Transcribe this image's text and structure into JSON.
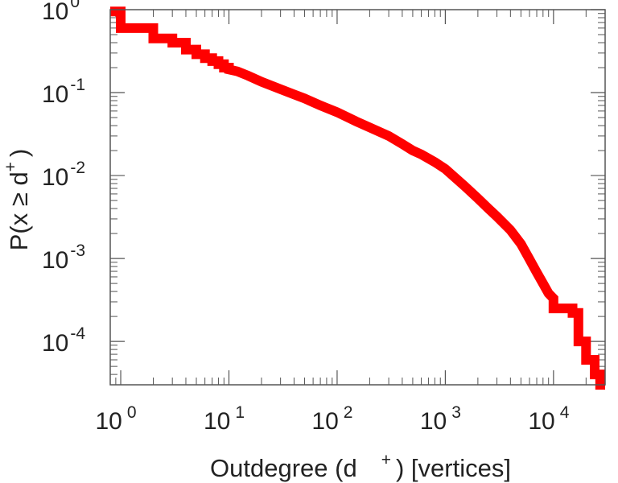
{
  "chart_data": {
    "type": "line",
    "style": "step",
    "xscale": "log",
    "yscale": "log",
    "xlim": [
      0.8,
      30000
    ],
    "ylim": [
      3e-05,
      1
    ],
    "grid": false,
    "legend": "none",
    "xlabel": {
      "prefix": "Outdegree (d",
      "sup": "+",
      "suffix": ") [vertices]"
    },
    "ylabel": {
      "prefix": "P(x ≥ d",
      "sup": "+",
      "suffix": ")"
    },
    "xticks": [
      {
        "value": 1,
        "base": "10",
        "exp": "0"
      },
      {
        "value": 10,
        "base": "10",
        "exp": "1"
      },
      {
        "value": 100,
        "base": "10",
        "exp": "2"
      },
      {
        "value": 1000,
        "base": "10",
        "exp": "3"
      },
      {
        "value": 10000,
        "base": "10",
        "exp": "4"
      }
    ],
    "yticks": [
      {
        "value": 1,
        "base": "10",
        "exp": "0"
      },
      {
        "value": 0.1,
        "base": "10",
        "exp": "-1"
      },
      {
        "value": 0.01,
        "base": "10",
        "exp": "-2"
      },
      {
        "value": 0.001,
        "base": "10",
        "exp": "-3"
      },
      {
        "value": 0.0001,
        "base": "10",
        "exp": "-4"
      }
    ],
    "series": [
      {
        "color": "#ff0000",
        "points": [
          [
            0.8,
            0.95
          ],
          [
            1,
            0.95
          ],
          [
            1,
            0.6
          ],
          [
            2,
            0.6
          ],
          [
            2,
            0.45
          ],
          [
            3,
            0.45
          ],
          [
            3,
            0.4
          ],
          [
            4,
            0.4
          ],
          [
            4,
            0.33
          ],
          [
            5,
            0.33
          ],
          [
            5,
            0.29
          ],
          [
            6,
            0.29
          ],
          [
            6,
            0.26
          ],
          [
            7,
            0.26
          ],
          [
            7,
            0.24
          ],
          [
            8,
            0.24
          ],
          [
            8,
            0.22
          ],
          [
            9,
            0.22
          ],
          [
            9,
            0.2
          ],
          [
            10,
            0.2
          ],
          [
            10,
            0.19
          ],
          [
            12,
            0.18
          ],
          [
            15,
            0.16
          ],
          [
            20,
            0.135
          ],
          [
            30,
            0.11
          ],
          [
            40,
            0.095
          ],
          [
            50,
            0.085
          ],
          [
            70,
            0.07
          ],
          [
            100,
            0.058
          ],
          [
            150,
            0.045
          ],
          [
            200,
            0.038
          ],
          [
            300,
            0.03
          ],
          [
            400,
            0.024
          ],
          [
            500,
            0.02
          ],
          [
            600,
            0.018
          ],
          [
            800,
            0.0145
          ],
          [
            1000,
            0.012
          ],
          [
            1500,
            0.0075
          ],
          [
            2000,
            0.0053
          ],
          [
            2500,
            0.004
          ],
          [
            3000,
            0.0032
          ],
          [
            4000,
            0.0022
          ],
          [
            5000,
            0.0015
          ],
          [
            6000,
            0.00098
          ],
          [
            7000,
            0.00068
          ],
          [
            8000,
            0.0005
          ],
          [
            9000,
            0.00038
          ],
          [
            10000,
            0.00033
          ],
          [
            10000,
            0.00025
          ],
          [
            15000,
            0.00025
          ],
          [
            15000,
            0.00022
          ],
          [
            17000,
            0.00022
          ],
          [
            17000,
            0.0001
          ],
          [
            20000,
            0.0001
          ],
          [
            20000,
            6e-05
          ],
          [
            24000,
            6e-05
          ],
          [
            24000,
            4e-05
          ],
          [
            27000,
            4e-05
          ],
          [
            27000,
            3e-05
          ],
          [
            30000,
            3e-05
          ]
        ]
      }
    ]
  }
}
